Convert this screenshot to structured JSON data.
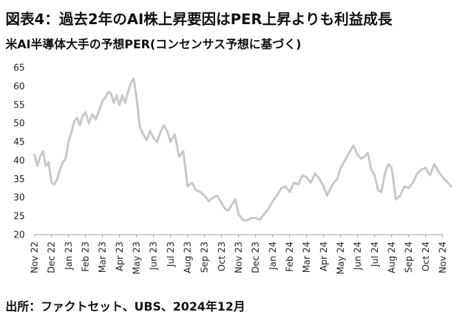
{
  "title": "図表4：過去2年のAI株上昇要因はPER上昇よりも利益成長",
  "subtitle": "米AI半導体大手の予想PER(コンセンサス予想に基づく)",
  "source": "出所：ファクトセット、UBS、2024年12月",
  "chart_data": {
    "type": "line",
    "title": "図表4：過去2年のAI株上昇要因はPER上昇よりも利益成長",
    "subtitle": "米AI半導体大手の予想PER(コンセンサス予想に基づく)",
    "xlabel": "",
    "ylabel": "",
    "ylim": [
      20,
      65
    ],
    "yticks": [
      20,
      25,
      30,
      35,
      40,
      45,
      50,
      55,
      60,
      65
    ],
    "xticks": [
      "Nov 22",
      "Dec 22",
      "Jan 23",
      "Feb 23",
      "Mar 23",
      "Apr 23",
      "May 23",
      "Jun 23",
      "Jul 23",
      "Aug 23",
      "Sep 23",
      "Oct 23",
      "Nov 23",
      "Dec 23",
      "Jan 24",
      "Feb 24",
      "Mar 24",
      "Apr 24",
      "May 24",
      "Jun 24",
      "Jul 24",
      "Aug 24",
      "Sep 24",
      "Oct 24",
      "Nov 24"
    ],
    "grid": false,
    "line_color": "#c8c8c8",
    "series": [
      {
        "values": [
          [
            "Nov 22",
            41.5
          ],
          [
            "Nov 22",
            38.5
          ],
          [
            "Nov 22",
            41.0
          ],
          [
            "Nov 22",
            42.5
          ],
          [
            "Nov 22",
            38.5
          ],
          [
            "Nov 22",
            39.5
          ],
          [
            "Dec 22",
            34.0
          ],
          [
            "Dec 22",
            33.5
          ],
          [
            "Dec 22",
            35.0
          ],
          [
            "Dec 22",
            37.5
          ],
          [
            "Dec 22",
            39.5
          ],
          [
            "Dec 22",
            40.5
          ],
          [
            "Jan 23",
            45.0
          ],
          [
            "Jan 23",
            47.5
          ],
          [
            "Jan 23",
            50.5
          ],
          [
            "Jan 23",
            51.5
          ],
          [
            "Jan 23",
            49.5
          ],
          [
            "Jan 23",
            52.0
          ],
          [
            "Feb 23",
            53.0
          ],
          [
            "Feb 23",
            50.0
          ],
          [
            "Feb 23",
            52.5
          ],
          [
            "Feb 23",
            51.0
          ],
          [
            "Feb 23",
            53.5
          ],
          [
            "Mar 23",
            56.0
          ],
          [
            "Mar 23",
            57.0
          ],
          [
            "Mar 23",
            58.5
          ],
          [
            "Mar 23",
            58.0
          ],
          [
            "Mar 23",
            55.5
          ],
          [
            "Mar 23",
            57.5
          ],
          [
            "Apr 23",
            55.0
          ],
          [
            "Apr 23",
            57.5
          ],
          [
            "Apr 23",
            55.5
          ],
          [
            "Apr 23",
            58.5
          ],
          [
            "Apr 23",
            61.0
          ],
          [
            "Apr 23",
            62.0
          ],
          [
            "May 23",
            57.0
          ],
          [
            "May 23",
            49.0
          ],
          [
            "May 23",
            47.0
          ],
          [
            "May 23",
            45.5
          ],
          [
            "May 23",
            48.0
          ],
          [
            "Jun 23",
            46.0
          ],
          [
            "Jun 23",
            45.0
          ],
          [
            "Jun 23",
            47.5
          ],
          [
            "Jun 23",
            49.5
          ],
          [
            "Jun 23",
            48.0
          ],
          [
            "Jul 23",
            45.0
          ],
          [
            "Jul 23",
            47.0
          ],
          [
            "Jul 23",
            41.0
          ],
          [
            "Jul 23",
            42.5
          ],
          [
            "Aug 23",
            33.0
          ],
          [
            "Aug 23",
            34.0
          ],
          [
            "Aug 23",
            32.0
          ],
          [
            "Aug 23",
            31.5
          ],
          [
            "Sep 23",
            30.5
          ],
          [
            "Sep 23",
            29.0
          ],
          [
            "Sep 23",
            30.0
          ],
          [
            "Sep 23",
            30.5
          ],
          [
            "Oct 23",
            28.5
          ],
          [
            "Oct 23",
            27.0
          ],
          [
            "Oct 23",
            26.5
          ],
          [
            "Oct 23",
            28.0
          ],
          [
            "Oct 23",
            29.5
          ],
          [
            "Nov 23",
            25.5
          ],
          [
            "Nov 23",
            24.0
          ],
          [
            "Nov 23",
            23.8
          ],
          [
            "Nov 23",
            24.5
          ],
          [
            "Dec 23",
            24.5
          ],
          [
            "Dec 23",
            24.0
          ],
          [
            "Dec 23",
            25.5
          ],
          [
            "Dec 23",
            27.0
          ],
          [
            "Jan 24",
            29.0
          ],
          [
            "Jan 24",
            30.5
          ],
          [
            "Jan 24",
            32.5
          ],
          [
            "Jan 24",
            33.0
          ],
          [
            "Feb 24",
            31.5
          ],
          [
            "Feb 24",
            34.0
          ],
          [
            "Feb 24",
            33.5
          ],
          [
            "Feb 24",
            36.0
          ],
          [
            "Mar 24",
            35.5
          ],
          [
            "Mar 24",
            34.0
          ],
          [
            "Mar 24",
            36.5
          ],
          [
            "Mar 24",
            35.0
          ],
          [
            "Apr 24",
            33.0
          ],
          [
            "Apr 24",
            30.5
          ],
          [
            "Apr 24",
            32.5
          ],
          [
            "Apr 24",
            34.0
          ],
          [
            "Apr 24",
            35.0
          ],
          [
            "May 24",
            38.0
          ],
          [
            "May 24",
            40.0
          ],
          [
            "May 24",
            42.0
          ],
          [
            "May 24",
            44.0
          ],
          [
            "Jun 24",
            41.5
          ],
          [
            "Jun 24",
            40.5
          ],
          [
            "Jun 24",
            41.0
          ],
          [
            "Jun 24",
            42.0
          ],
          [
            "Jun 24",
            37.5
          ],
          [
            "Jul 24",
            36.0
          ],
          [
            "Jul 24",
            32.0
          ],
          [
            "Jul 24",
            31.5
          ],
          [
            "Jul 24",
            36.5
          ],
          [
            "Jul 24",
            39.0
          ],
          [
            "Aug 24",
            38.0
          ],
          [
            "Aug 24",
            29.5
          ],
          [
            "Aug 24",
            30.5
          ],
          [
            "Aug 24",
            33.0
          ],
          [
            "Sep 24",
            32.5
          ],
          [
            "Sep 24",
            34.0
          ],
          [
            "Sep 24",
            36.5
          ],
          [
            "Sep 24",
            37.5
          ],
          [
            "Oct 24",
            38.0
          ],
          [
            "Oct 24",
            36.0
          ],
          [
            "Oct 24",
            39.0
          ],
          [
            "Oct 24",
            37.0
          ],
          [
            "Nov 24",
            35.5
          ],
          [
            "Nov 24",
            33.0
          ]
        ]
      }
    ]
  }
}
